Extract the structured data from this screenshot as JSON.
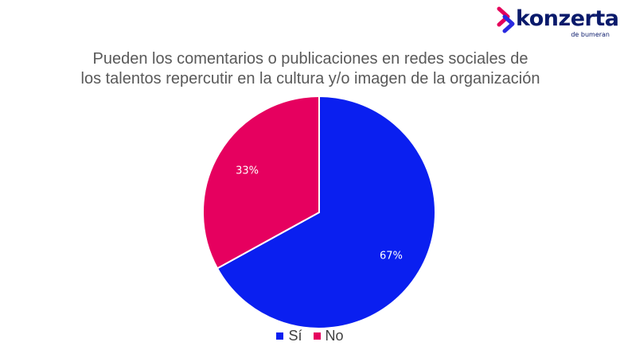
{
  "logo": {
    "name": "konzerta",
    "sub": "de bumeran",
    "mark_colors": [
      "#e5005b",
      "#2a2ae0"
    ]
  },
  "chart_data": {
    "type": "pie",
    "title_lines": [
      "Pueden los comentarios o publicaciones en redes sociales de",
      "los talentos repercutir en la cultura y/o imagen de la organización"
    ],
    "categories": [
      "Sí",
      "No"
    ],
    "values": [
      67,
      33
    ],
    "data_labels": [
      "67%",
      "33%"
    ],
    "colors": [
      "#0a1ff0",
      "#e6005f"
    ],
    "legend_position": "bottom"
  }
}
